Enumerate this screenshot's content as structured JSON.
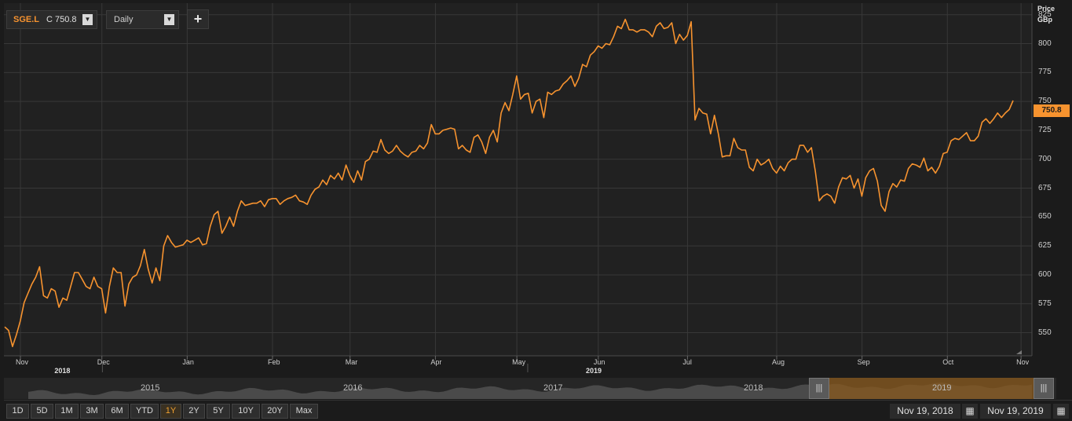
{
  "toolbar": {
    "symbol": "SGE.L",
    "close_label": "C 750.8",
    "interval": "Daily",
    "add_label": "+"
  },
  "axis": {
    "title_line1": "Price",
    "title_line2": "GBp",
    "last_value": "750.8"
  },
  "navigator": {
    "years": [
      "2015",
      "2016",
      "2017",
      "2018",
      "2019"
    ]
  },
  "range_buttons": [
    "1D",
    "5D",
    "1M",
    "3M",
    "6M",
    "YTD",
    "1Y",
    "2Y",
    "5Y",
    "10Y",
    "20Y",
    "Max"
  ],
  "active_range": "1Y",
  "dates": {
    "start": "Nov 19, 2018",
    "end": "Nov 19, 2019"
  },
  "colors": {
    "line": "#f7932f",
    "grid": "#383838",
    "background": "#1b1b1b"
  },
  "chart_data": {
    "type": "line",
    "ylabel": "Price GBp",
    "ylim": [
      530,
      835
    ],
    "yticks": [
      550,
      575,
      600,
      625,
      650,
      675,
      700,
      725,
      750,
      775,
      800,
      825
    ],
    "x_ticks": [
      {
        "label": "Nov",
        "day": 0
      },
      {
        "label": "Dec",
        "day": 21
      },
      {
        "label": "Jan",
        "day": 43
      },
      {
        "label": "Feb",
        "day": 65
      },
      {
        "label": "Mar",
        "day": 85
      },
      {
        "label": "Apr",
        "day": 107
      },
      {
        "label": "May",
        "day": 128
      },
      {
        "label": "Jun",
        "day": 149
      },
      {
        "label": "Jul",
        "day": 172
      },
      {
        "label": "Aug",
        "day": 195
      },
      {
        "label": "Sep",
        "day": 217
      },
      {
        "label": "Oct",
        "day": 239
      },
      {
        "label": "Nov",
        "day": 258
      }
    ],
    "year_labels": [
      {
        "label": "2018",
        "day": 10
      },
      {
        "label": "2019",
        "day": 147
      }
    ],
    "last": 750.8,
    "series": [
      {
        "values": [
          [
            0,
            555
          ],
          [
            1,
            552
          ],
          [
            2,
            538
          ],
          [
            3,
            548
          ],
          [
            4,
            560
          ],
          [
            5,
            576
          ],
          [
            6,
            584
          ],
          [
            7,
            592
          ],
          [
            8,
            598
          ],
          [
            9,
            607
          ],
          [
            10,
            582
          ],
          [
            11,
            580
          ],
          [
            12,
            588
          ],
          [
            13,
            586
          ],
          [
            14,
            572
          ],
          [
            15,
            580
          ],
          [
            16,
            578
          ],
          [
            17,
            590
          ],
          [
            18,
            602
          ],
          [
            19,
            602
          ],
          [
            20,
            596
          ],
          [
            21,
            590
          ],
          [
            22,
            588
          ],
          [
            23,
            598
          ],
          [
            24,
            590
          ],
          [
            25,
            588
          ],
          [
            26,
            567
          ],
          [
            27,
            590
          ],
          [
            28,
            606
          ],
          [
            29,
            602
          ],
          [
            30,
            602
          ],
          [
            31,
            573
          ],
          [
            32,
            592
          ],
          [
            33,
            598
          ],
          [
            34,
            600
          ],
          [
            35,
            608
          ],
          [
            36,
            622
          ],
          [
            37,
            605
          ],
          [
            38,
            593
          ],
          [
            39,
            606
          ],
          [
            40,
            595
          ],
          [
            41,
            625
          ],
          [
            42,
            634
          ],
          [
            43,
            628
          ],
          [
            44,
            624
          ],
          [
            45,
            625
          ],
          [
            46,
            626
          ],
          [
            47,
            630
          ],
          [
            48,
            628
          ],
          [
            49,
            630
          ],
          [
            50,
            632
          ],
          [
            51,
            626
          ],
          [
            52,
            627
          ],
          [
            53,
            642
          ],
          [
            54,
            652
          ],
          [
            55,
            655
          ],
          [
            56,
            636
          ],
          [
            57,
            642
          ],
          [
            58,
            650
          ],
          [
            59,
            642
          ],
          [
            60,
            655
          ],
          [
            61,
            664
          ],
          [
            62,
            660
          ],
          [
            63,
            661
          ],
          [
            64,
            662
          ],
          [
            65,
            662
          ],
          [
            66,
            664
          ],
          [
            67,
            659
          ],
          [
            68,
            665
          ],
          [
            69,
            666
          ],
          [
            70,
            666
          ],
          [
            71,
            661
          ],
          [
            72,
            664
          ],
          [
            73,
            666
          ],
          [
            74,
            667
          ],
          [
            75,
            669
          ],
          [
            76,
            664
          ],
          [
            77,
            663
          ],
          [
            78,
            661
          ],
          [
            79,
            669
          ],
          [
            80,
            674
          ],
          [
            81,
            676
          ],
          [
            82,
            682
          ],
          [
            83,
            678
          ],
          [
            84,
            686
          ],
          [
            85,
            683
          ],
          [
            86,
            688
          ],
          [
            87,
            682
          ],
          [
            88,
            695
          ],
          [
            89,
            686
          ],
          [
            90,
            680
          ],
          [
            91,
            690
          ],
          [
            92,
            682
          ],
          [
            93,
            698
          ],
          [
            94,
            700
          ],
          [
            95,
            707
          ],
          [
            96,
            706
          ],
          [
            97,
            717
          ],
          [
            98,
            708
          ],
          [
            99,
            705
          ],
          [
            100,
            707
          ],
          [
            101,
            712
          ],
          [
            102,
            707
          ],
          [
            103,
            704
          ],
          [
            104,
            702
          ],
          [
            105,
            706
          ],
          [
            106,
            707
          ],
          [
            107,
            712
          ],
          [
            108,
            709
          ],
          [
            109,
            714
          ],
          [
            110,
            730
          ],
          [
            111,
            722
          ],
          [
            112,
            722
          ],
          [
            113,
            725
          ],
          [
            114,
            726
          ],
          [
            115,
            727
          ],
          [
            116,
            726
          ],
          [
            117,
            709
          ],
          [
            118,
            712
          ],
          [
            119,
            708
          ],
          [
            120,
            706
          ],
          [
            121,
            719
          ],
          [
            122,
            721
          ],
          [
            123,
            715
          ],
          [
            124,
            705
          ],
          [
            125,
            719
          ],
          [
            126,
            725
          ],
          [
            127,
            715
          ],
          [
            128,
            740
          ],
          [
            129,
            749
          ],
          [
            130,
            742
          ],
          [
            131,
            756
          ],
          [
            132,
            772
          ],
          [
            133,
            752
          ],
          [
            134,
            756
          ],
          [
            135,
            757
          ],
          [
            136,
            740
          ],
          [
            137,
            750
          ],
          [
            138,
            752
          ],
          [
            139,
            736
          ],
          [
            140,
            758
          ],
          [
            141,
            756
          ],
          [
            142,
            759
          ],
          [
            143,
            760
          ],
          [
            144,
            765
          ],
          [
            145,
            768
          ],
          [
            146,
            772
          ],
          [
            147,
            763
          ],
          [
            148,
            770
          ],
          [
            149,
            782
          ],
          [
            150,
            780
          ],
          [
            151,
            790
          ],
          [
            152,
            793
          ],
          [
            153,
            798
          ],
          [
            154,
            796
          ],
          [
            155,
            800
          ],
          [
            156,
            799
          ],
          [
            157,
            806
          ],
          [
            158,
            815
          ],
          [
            159,
            813
          ],
          [
            160,
            821
          ],
          [
            161,
            812
          ],
          [
            162,
            812
          ],
          [
            163,
            810
          ],
          [
            164,
            812
          ],
          [
            165,
            812
          ],
          [
            166,
            810
          ],
          [
            167,
            806
          ],
          [
            168,
            815
          ],
          [
            169,
            818
          ],
          [
            170,
            813
          ],
          [
            171,
            814
          ],
          [
            172,
            818
          ],
          [
            173,
            800
          ],
          [
            174,
            808
          ],
          [
            175,
            803
          ],
          [
            176,
            807
          ],
          [
            177,
            819
          ],
          [
            178,
            734
          ],
          [
            179,
            744
          ],
          [
            180,
            740
          ],
          [
            181,
            739
          ],
          [
            182,
            722
          ],
          [
            183,
            738
          ],
          [
            184,
            722
          ],
          [
            185,
            702
          ],
          [
            186,
            703
          ],
          [
            187,
            703
          ],
          [
            188,
            718
          ],
          [
            189,
            710
          ],
          [
            190,
            708
          ],
          [
            191,
            708
          ],
          [
            192,
            693
          ],
          [
            193,
            690
          ],
          [
            194,
            700
          ],
          [
            195,
            695
          ],
          [
            196,
            697
          ],
          [
            197,
            700
          ],
          [
            198,
            692
          ],
          [
            199,
            688
          ],
          [
            200,
            694
          ],
          [
            201,
            690
          ],
          [
            202,
            697
          ],
          [
            203,
            700
          ],
          [
            204,
            700
          ],
          [
            205,
            712
          ],
          [
            206,
            712
          ],
          [
            207,
            706
          ],
          [
            208,
            710
          ],
          [
            209,
            690
          ],
          [
            210,
            664
          ],
          [
            211,
            668
          ],
          [
            212,
            670
          ],
          [
            213,
            668
          ],
          [
            214,
            662
          ],
          [
            215,
            676
          ],
          [
            216,
            684
          ],
          [
            217,
            683
          ],
          [
            218,
            686
          ],
          [
            219,
            675
          ],
          [
            220,
            683
          ],
          [
            221,
            668
          ],
          [
            222,
            684
          ],
          [
            223,
            690
          ],
          [
            224,
            692
          ],
          [
            225,
            681
          ],
          [
            226,
            660
          ],
          [
            227,
            655
          ],
          [
            228,
            672
          ],
          [
            229,
            679
          ],
          [
            230,
            676
          ],
          [
            231,
            682
          ],
          [
            232,
            681
          ],
          [
            233,
            692
          ],
          [
            234,
            696
          ],
          [
            235,
            695
          ],
          [
            236,
            693
          ],
          [
            237,
            701
          ],
          [
            238,
            690
          ],
          [
            239,
            693
          ],
          [
            240,
            688
          ],
          [
            241,
            694
          ],
          [
            242,
            705
          ],
          [
            243,
            706
          ],
          [
            244,
            716
          ],
          [
            245,
            718
          ],
          [
            246,
            717
          ],
          [
            247,
            720
          ],
          [
            248,
            723
          ],
          [
            249,
            716
          ],
          [
            250,
            716
          ],
          [
            251,
            720
          ],
          [
            252,
            732
          ],
          [
            253,
            735
          ],
          [
            254,
            731
          ],
          [
            255,
            735
          ],
          [
            256,
            740
          ],
          [
            257,
            736
          ],
          [
            258,
            740
          ],
          [
            259,
            743
          ],
          [
            260,
            750.8
          ]
        ]
      }
    ]
  }
}
